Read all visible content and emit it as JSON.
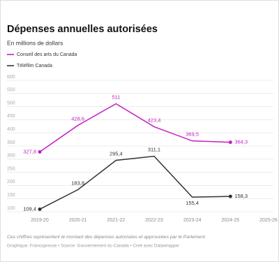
{
  "chart_data": {
    "type": "line",
    "title": "Dépenses annuelles autorisées",
    "subtitle": "En millions de dollars",
    "categories": [
      "2019-20",
      "2020-21",
      "2021-22",
      "2022-23",
      "2023-24",
      "2024-25",
      "2025-26"
    ],
    "series": [
      {
        "name": "Conseil des arts du Canada",
        "color": "#c41fc4",
        "values": [
          327.8,
          428.6,
          511,
          423.4,
          369.5,
          364.3,
          null
        ],
        "value_labels": [
          "327,8",
          "428,6",
          "511",
          "423,4",
          "369,5",
          "364,3",
          null
        ]
      },
      {
        "name": "Téléfilm Canada",
        "color": "#333333",
        "values": [
          109.4,
          183.8,
          295.4,
          311.1,
          155.4,
          158.3,
          null
        ],
        "value_labels": [
          "109,4",
          "183,8",
          "295,4",
          "311,1",
          "155,4",
          "158,3",
          null
        ]
      }
    ],
    "ylim": [
      100,
      600
    ],
    "yticks": [
      100,
      150,
      200,
      250,
      300,
      350,
      400,
      450,
      500,
      550,
      600
    ],
    "grid": true,
    "note": "Ces chiffres représentent le montant des dépenses autorisées et approuvées par le Parlement.",
    "source": "Graphique: Francopresse • Source: Gouvernement du Canada • Créé avec Datawrapper"
  }
}
